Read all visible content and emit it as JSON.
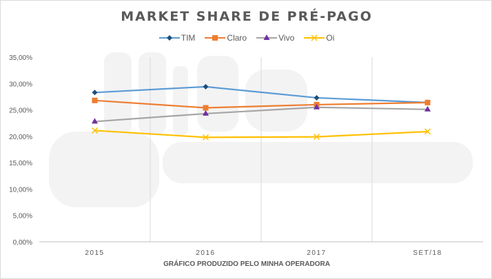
{
  "chart_data": {
    "type": "line",
    "title": "MARKET SHARE DE PRÉ-PAGO",
    "xlabel": "GRÁFICO PRODUZIDO PELO MINHA OPERADORA",
    "ylabel": "",
    "categories": [
      "2015",
      "2016",
      "2017",
      "SET/18"
    ],
    "ylim": [
      0,
      35
    ],
    "yticks": [
      "0,00%",
      "5,00%",
      "10,00%",
      "15,00%",
      "20,00%",
      "25,00%",
      "30,00%",
      "35,00%"
    ],
    "legend": "top",
    "series": [
      {
        "name": "TIM",
        "color": "#5b9bd5",
        "marker_color": "#1f4e79",
        "marker": "diamond",
        "values": [
          28.3,
          29.4,
          27.3,
          26.4
        ]
      },
      {
        "name": "Claro",
        "color": "#ed7d31",
        "marker_color": "#ed7d31",
        "marker": "square",
        "values": [
          26.8,
          25.4,
          26.0,
          26.4
        ]
      },
      {
        "name": "Vivo",
        "color": "#a5a5a5",
        "marker_color": "#7030a0",
        "marker": "triangle",
        "values": [
          22.8,
          24.3,
          25.5,
          25.1
        ]
      },
      {
        "name": "Oi",
        "color": "#ffc000",
        "marker_color": "#ffc000",
        "marker": "x",
        "values": [
          21.1,
          19.8,
          19.9,
          20.9
        ]
      }
    ]
  },
  "watermark": "Minha Operadora"
}
